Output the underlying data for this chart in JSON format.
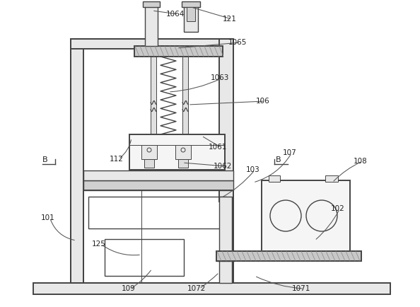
{
  "bg_color": "#ffffff",
  "lc": "#444444",
  "lc2": "#555555",
  "gray_fill": "#c8c8c8",
  "light_gray": "#e8e8e8",
  "med_gray": "#d0d0d0",
  "hatch_gray": "#aaaaaa"
}
